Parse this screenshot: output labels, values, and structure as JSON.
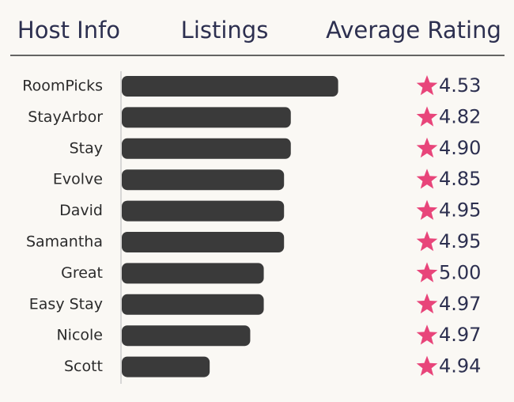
{
  "chart_data": {
    "type": "bar",
    "headers": [
      "Host Info",
      "Listings",
      "Average Rating"
    ],
    "categories": [
      "RoomPicks",
      "StayArbor",
      "Stay",
      "Evolve",
      "David",
      "Samantha",
      "Great",
      "Easy Stay",
      "Nicole",
      "Scott"
    ],
    "values": [
      32,
      25,
      25,
      24,
      24,
      24,
      21,
      21,
      19,
      13
    ],
    "color": "#3a3a3a",
    "ratings": {
      "values": [
        4.53,
        4.82,
        4.9,
        4.85,
        4.95,
        4.95,
        5,
        4.97,
        4.97,
        4.94
      ],
      "value_labels": [
        "4.53",
        "4.82",
        "4.90",
        "4.85",
        "4.95",
        "4.95",
        "5.00",
        "4.97",
        "4.97",
        "4.94"
      ],
      "color": "#e8457a"
    }
  }
}
